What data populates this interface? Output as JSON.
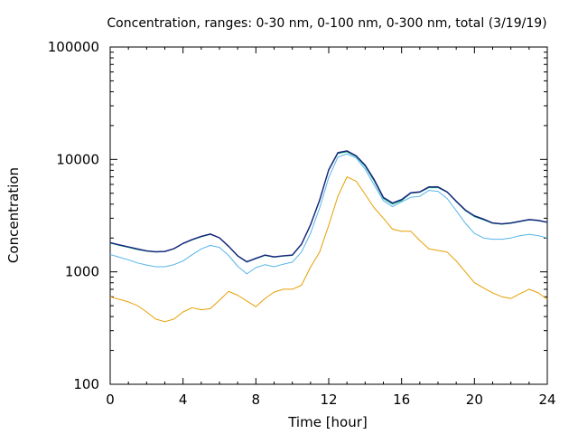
{
  "chart_data": {
    "type": "line",
    "title": "Concentration, ranges: 0-30 nm, 0-100 nm, 0-300 nm, total (3/19/19)",
    "xlabel": "Time [hour]",
    "ylabel": "Concentration",
    "xlim": [
      0,
      24
    ],
    "ylim": [
      100,
      100000
    ],
    "yscale": "log",
    "grid": false,
    "x_ticks": [
      0,
      4,
      8,
      12,
      16,
      20,
      24
    ],
    "x_tick_labels": [
      "0",
      "4",
      "8",
      "12",
      "16",
      "20",
      "24"
    ],
    "y_ticks": [
      100,
      1000,
      10000,
      100000
    ],
    "y_tick_labels": [
      "100",
      "1000",
      "10000",
      "100000"
    ],
    "x": [
      0,
      0.5,
      1,
      1.5,
      2,
      2.5,
      3,
      3.5,
      4,
      4.5,
      5,
      5.5,
      6,
      6.5,
      7,
      7.5,
      8,
      8.5,
      9,
      9.5,
      10,
      10.5,
      11,
      11.5,
      12,
      12.5,
      13,
      13.5,
      14,
      14.5,
      15,
      15.5,
      16,
      16.5,
      17,
      17.5,
      18,
      18.5,
      19,
      19.5,
      20,
      20.5,
      21,
      21.5,
      22,
      22.5,
      23,
      23.5,
      24
    ],
    "series": [
      {
        "color": "#e69f00",
        "values": [
          600,
          570,
          540,
          500,
          440,
          380,
          360,
          380,
          440,
          480,
          460,
          470,
          560,
          670,
          620,
          550,
          490,
          580,
          660,
          700,
          700,
          760,
          1100,
          1500,
          2600,
          4700,
          7000,
          6400,
          4900,
          3700,
          3000,
          2400,
          2300,
          2300,
          1900,
          1600,
          1550,
          1500,
          1250,
          1000,
          800,
          720,
          650,
          600,
          580,
          640,
          700,
          650,
          570
        ]
      },
      {
        "color": "#56b4e9",
        "values": [
          1430,
          1350,
          1280,
          1200,
          1150,
          1110,
          1110,
          1160,
          1250,
          1420,
          1600,
          1720,
          1650,
          1400,
          1120,
          960,
          1090,
          1160,
          1110,
          1170,
          1220,
          1500,
          2200,
          3700,
          6900,
          10500,
          11200,
          10300,
          8200,
          5900,
          4300,
          3800,
          4200,
          4600,
          4700,
          5300,
          5200,
          4500,
          3500,
          2700,
          2200,
          2000,
          1950,
          1950,
          2000,
          2100,
          2150,
          2100,
          2000
        ]
      },
      {
        "color": "#009e73",
        "values": [
          1800,
          1720,
          1650,
          1580,
          1530,
          1500,
          1510,
          1600,
          1780,
          1920,
          2050,
          2150,
          2000,
          1680,
          1380,
          1220,
          1310,
          1400,
          1350,
          1380,
          1400,
          1750,
          2600,
          4300,
          8000,
          11300,
          11700,
          10600,
          8700,
          6400,
          4500,
          4000,
          4300,
          5000,
          5100,
          5600,
          5600,
          5100,
          4200,
          3500,
          3100,
          2900,
          2700,
          2650,
          2700,
          2800,
          2900,
          2850,
          2750
        ]
      },
      {
        "color": "#1a237e",
        "values": [
          1820,
          1740,
          1670,
          1600,
          1540,
          1510,
          1520,
          1610,
          1790,
          1940,
          2070,
          2170,
          2010,
          1690,
          1390,
          1230,
          1320,
          1410,
          1360,
          1390,
          1410,
          1760,
          2620,
          4350,
          8100,
          11500,
          11900,
          10800,
          8900,
          6600,
          4600,
          4100,
          4400,
          5050,
          5150,
          5700,
          5700,
          5150,
          4250,
          3550,
          3150,
          2950,
          2720,
          2670,
          2720,
          2820,
          2920,
          2870,
          2760
        ]
      }
    ]
  }
}
